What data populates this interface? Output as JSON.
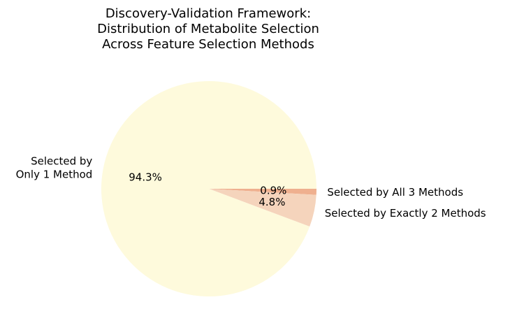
{
  "chart_data": {
    "type": "pie",
    "title_lines": [
      "Discovery-Validation Framework:",
      "Distribution of Metabolite Selection",
      "Across Feature Selection Methods"
    ],
    "slices": [
      {
        "label_lines": [
          "Selected by All 3 Methods"
        ],
        "value": 0.9,
        "pct_label": "0.9%",
        "color": "#efb08f"
      },
      {
        "label_lines": [
          "Selected by Exactly 2 Methods"
        ],
        "value": 4.8,
        "pct_label": "4.8%",
        "color": "#f5d4bc"
      },
      {
        "label_lines": [
          "Selected by",
          "Only 1 Method"
        ],
        "value": 94.3,
        "pct_label": "94.3%",
        "color": "#fefadc"
      }
    ],
    "start_angle_deg": 0,
    "direction": "clockwise-on-screen"
  }
}
